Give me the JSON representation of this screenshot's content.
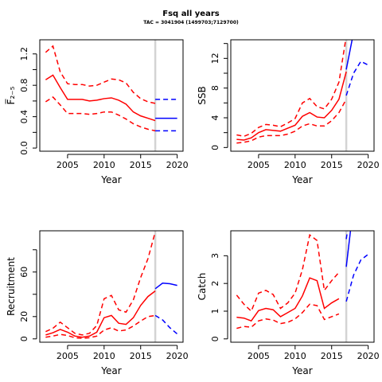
{
  "title": "Fsq all years",
  "subtitle": "TAC = 3041904 (1499703;7129700)",
  "colors": {
    "history": "#ff0000",
    "projection": "#0000ff",
    "divider": "#d3d3d3"
  },
  "chart_data": [
    {
      "type": "line",
      "title": "",
      "xlabel": "Year",
      "ylabel": "F̅₂₋₅",
      "xlim": [
        2001.2,
        2020.8
      ],
      "ylim": [
        -0.04,
        1.38
      ],
      "x_ticks": [
        2005,
        2010,
        2015,
        2020
      ],
      "y_ticks": [
        0.0,
        0.2,
        0.4,
        0.6,
        0.8,
        1.0,
        1.2
      ],
      "y_tick_labels": [
        "0.0",
        "",
        "0.4",
        "",
        "0.8",
        "",
        "1.2"
      ],
      "divider_x": 2017,
      "series": [
        {
          "role": "history-lower",
          "dashed": true,
          "color": "#ff0000",
          "x": [
            2002,
            2003,
            2004,
            2005,
            2006,
            2007,
            2008,
            2009,
            2010,
            2011,
            2012,
            2013,
            2014,
            2015,
            2016,
            2017
          ],
          "y": [
            0.59,
            0.65,
            0.55,
            0.44,
            0.44,
            0.44,
            0.43,
            0.44,
            0.46,
            0.46,
            0.42,
            0.37,
            0.31,
            0.27,
            0.24,
            0.22
          ]
        },
        {
          "role": "history-median",
          "dashed": false,
          "color": "#ff0000",
          "x": [
            2002,
            2003,
            2004,
            2005,
            2006,
            2007,
            2008,
            2009,
            2010,
            2011,
            2012,
            2013,
            2014,
            2015,
            2016,
            2017
          ],
          "y": [
            0.87,
            0.93,
            0.77,
            0.62,
            0.62,
            0.62,
            0.6,
            0.61,
            0.63,
            0.64,
            0.61,
            0.56,
            0.46,
            0.41,
            0.38,
            0.35
          ]
        },
        {
          "role": "history-upper",
          "dashed": true,
          "color": "#ff0000",
          "x": [
            2002,
            2003,
            2004,
            2005,
            2006,
            2007,
            2008,
            2009,
            2010,
            2011,
            2012,
            2013,
            2014,
            2015,
            2016,
            2017
          ],
          "y": [
            1.22,
            1.3,
            0.97,
            0.82,
            0.81,
            0.81,
            0.79,
            0.8,
            0.84,
            0.88,
            0.87,
            0.83,
            0.71,
            0.63,
            0.59,
            0.57
          ]
        },
        {
          "role": "projection-lower",
          "dashed": true,
          "color": "#0000ff",
          "x": [
            2017,
            2018,
            2019,
            2020
          ],
          "y": [
            0.22,
            0.22,
            0.22,
            0.22
          ]
        },
        {
          "role": "projection-median",
          "dashed": false,
          "color": "#0000ff",
          "x": [
            2017,
            2018,
            2019,
            2020
          ],
          "y": [
            0.38,
            0.38,
            0.38,
            0.38
          ]
        },
        {
          "role": "projection-upper",
          "dashed": true,
          "color": "#0000ff",
          "x": [
            2017,
            2018,
            2019,
            2020
          ],
          "y": [
            0.62,
            0.62,
            0.62,
            0.62
          ]
        }
      ]
    },
    {
      "type": "line",
      "title": "",
      "xlabel": "Year",
      "ylabel": "SSB",
      "xlim": [
        2001.2,
        2020.8
      ],
      "ylim": [
        -0.5,
        14.5
      ],
      "x_ticks": [
        2005,
        2010,
        2015,
        2020
      ],
      "y_ticks": [
        0,
        2,
        4,
        6,
        8,
        10,
        12,
        14
      ],
      "y_tick_labels": [
        "0",
        "",
        "4",
        "",
        "8",
        "",
        "12",
        ""
      ],
      "divider_x": 2017,
      "series": [
        {
          "role": "history-lower",
          "dashed": true,
          "color": "#ff0000",
          "x": [
            2002,
            2003,
            2004,
            2005,
            2006,
            2007,
            2008,
            2009,
            2010,
            2011,
            2012,
            2013,
            2014,
            2015,
            2016,
            2017
          ],
          "y": [
            0.6,
            0.7,
            0.9,
            1.4,
            1.6,
            1.6,
            1.6,
            1.8,
            2.2,
            2.9,
            3.2,
            2.9,
            2.9,
            3.6,
            4.7,
            6.5
          ]
        },
        {
          "role": "history-median",
          "dashed": false,
          "color": "#ff0000",
          "x": [
            2002,
            2003,
            2004,
            2005,
            2006,
            2007,
            2008,
            2009,
            2010,
            2011,
            2012,
            2013,
            2014,
            2015,
            2016,
            2017
          ],
          "y": [
            1.1,
            1.0,
            1.3,
            2.0,
            2.4,
            2.3,
            2.2,
            2.6,
            3.0,
            4.2,
            4.7,
            4.1,
            4.0,
            5.0,
            6.5,
            10.2
          ]
        },
        {
          "role": "history-upper",
          "dashed": true,
          "color": "#ff0000",
          "x": [
            2002,
            2003,
            2004,
            2005,
            2006,
            2007,
            2008,
            2009,
            2010,
            2011,
            2012,
            2013,
            2014,
            2015,
            2016,
            2017
          ],
          "y": [
            1.7,
            1.5,
            1.9,
            2.7,
            3.1,
            3.0,
            2.8,
            3.3,
            3.9,
            6.0,
            6.6,
            5.5,
            5.2,
            6.5,
            8.8,
            15.0
          ]
        },
        {
          "role": "projection-lower",
          "dashed": true,
          "color": "#0000ff",
          "x": [
            2017,
            2018,
            2019,
            2020
          ],
          "y": [
            7.0,
            10.0,
            11.6,
            11.1
          ]
        },
        {
          "role": "projection-median",
          "dashed": false,
          "color": "#0000ff",
          "x": [
            2017,
            2018
          ],
          "y": [
            10.5,
            15.5
          ]
        }
      ]
    },
    {
      "type": "line",
      "title": "",
      "xlabel": "Year",
      "ylabel": "Recruitment",
      "xlim": [
        2001.2,
        2020.8
      ],
      "ylim": [
        -3,
        97
      ],
      "x_ticks": [
        2005,
        2010,
        2015,
        2020
      ],
      "y_ticks": [
        0,
        20,
        40,
        60,
        80
      ],
      "y_tick_labels": [
        "0",
        "20",
        "",
        "60",
        ""
      ],
      "divider_x": 2017,
      "series": [
        {
          "role": "history-lower",
          "dashed": true,
          "color": "#ff0000",
          "x": [
            2002,
            2003,
            2004,
            2005,
            2006,
            2007,
            2008,
            2009,
            2010,
            2011,
            2012,
            2013,
            2014,
            2015,
            2016,
            2017
          ],
          "y": [
            1.5,
            2.5,
            4,
            3,
            1,
            0.5,
            1,
            2.5,
            8,
            10,
            7,
            8,
            11.5,
            16,
            20,
            21
          ]
        },
        {
          "role": "history-median",
          "dashed": false,
          "color": "#ff0000",
          "x": [
            2002,
            2003,
            2004,
            2005,
            2006,
            2007,
            2008,
            2009,
            2010,
            2011,
            2012,
            2013,
            2014,
            2015,
            2016,
            2017
          ],
          "y": [
            3.5,
            5.5,
            8.5,
            6,
            2.5,
            1.5,
            2.5,
            6,
            19,
            21,
            14,
            13,
            19,
            30,
            38,
            43
          ]
        },
        {
          "role": "history-upper",
          "dashed": true,
          "color": "#ff0000",
          "x": [
            2002,
            2003,
            2004,
            2005,
            2006,
            2007,
            2008,
            2009,
            2010,
            2011,
            2012,
            2013,
            2014,
            2015,
            2016,
            2017
          ],
          "y": [
            6.5,
            9.5,
            15,
            10,
            5,
            3.5,
            5,
            12,
            36,
            39,
            26,
            24,
            35,
            55,
            72,
            96
          ]
        },
        {
          "role": "projection-lower",
          "dashed": true,
          "color": "#0000ff",
          "x": [
            2017,
            2018,
            2019,
            2020
          ],
          "y": [
            21,
            17,
            10,
            4.5
          ]
        },
        {
          "role": "projection-median",
          "dashed": false,
          "color": "#0000ff",
          "x": [
            2017,
            2018,
            2019,
            2020
          ],
          "y": [
            45,
            50,
            49.5,
            48
          ]
        }
      ]
    },
    {
      "type": "line",
      "title": "",
      "xlabel": "Year",
      "ylabel": "Catch",
      "xlim": [
        2001.2,
        2020.8
      ],
      "ylim": [
        -0.12,
        3.9
      ],
      "x_ticks": [
        2005,
        2010,
        2015,
        2020
      ],
      "y_ticks": [
        0,
        1,
        2,
        3
      ],
      "y_tick_labels": [
        "0",
        "1",
        "2",
        "3"
      ],
      "divider_x": 2017,
      "series": [
        {
          "role": "history-lower",
          "dashed": true,
          "color": "#ff0000",
          "x": [
            2002,
            2003,
            2004,
            2005,
            2006,
            2007,
            2008,
            2009,
            2010,
            2011,
            2012,
            2013,
            2014,
            2015,
            2016
          ],
          "y": [
            0.38,
            0.45,
            0.42,
            0.65,
            0.72,
            0.68,
            0.55,
            0.6,
            0.72,
            0.95,
            1.25,
            1.2,
            0.7,
            0.8,
            0.9
          ]
        },
        {
          "role": "history-median",
          "dashed": false,
          "color": "#ff0000",
          "x": [
            2002,
            2003,
            2004,
            2005,
            2006,
            2007,
            2008,
            2009,
            2010,
            2011,
            2012,
            2013,
            2014,
            2015,
            2016
          ],
          "y": [
            0.78,
            0.75,
            0.65,
            1.02,
            1.1,
            1.05,
            0.8,
            0.95,
            1.1,
            1.55,
            2.2,
            2.1,
            1.1,
            1.3,
            1.45
          ]
        },
        {
          "role": "history-upper",
          "dashed": true,
          "color": "#ff0000",
          "x": [
            2002,
            2003,
            2004,
            2005,
            2006,
            2007,
            2008,
            2009,
            2010,
            2011,
            2012,
            2013,
            2014,
            2015,
            2016
          ],
          "y": [
            1.58,
            1.25,
            1.0,
            1.65,
            1.75,
            1.6,
            1.1,
            1.3,
            1.65,
            2.5,
            3.75,
            3.55,
            1.75,
            2.1,
            2.4
          ]
        },
        {
          "role": "projection-lower",
          "dashed": true,
          "color": "#0000ff",
          "x": [
            2017,
            2018,
            2019,
            2020
          ],
          "y": [
            1.35,
            2.3,
            2.85,
            3.05
          ]
        },
        {
          "role": "projection-median",
          "dashed": false,
          "color": "#0000ff",
          "x": [
            2017,
            2017.6
          ],
          "y": [
            2.6,
            3.95
          ]
        },
        {
          "role": "projection-upper",
          "dashed": true,
          "color": "#0000ff",
          "x": [
            2017,
            2017.2
          ],
          "y": [
            3.6,
            3.95
          ]
        }
      ]
    }
  ]
}
